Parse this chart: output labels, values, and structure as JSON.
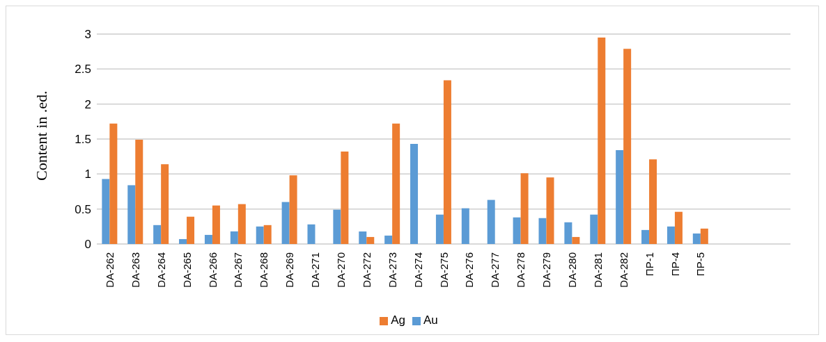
{
  "chart_data": {
    "type": "bar",
    "ylabel": "Content in .ed.",
    "categories": [
      "DA-262",
      "DA-263",
      "DA-264",
      "DA-265",
      "DA-266",
      "DA-267",
      "DA-268",
      "DA-269",
      "DA-271",
      "DA-270",
      "DA-272",
      "DA-273",
      "DA-274",
      "DA-275",
      "DA-276",
      "DA-277",
      "DA-278",
      "DA-279",
      "DA-280",
      "DA-281",
      "DA-282",
      "ПР-1",
      "ПР-4",
      "ПР-5",
      null,
      null,
      null
    ],
    "series": [
      {
        "name": "Au",
        "color": "#5b9bd5",
        "values": [
          0.93,
          0.84,
          0.27,
          0.07,
          0.13,
          0.18,
          0.25,
          0.6,
          0.28,
          0.49,
          0.18,
          0.12,
          1.43,
          0.42,
          0.51,
          0.63,
          0.38,
          0.37,
          0.31,
          0.42,
          1.34,
          0.2,
          0.25,
          0.15,
          null,
          null,
          null
        ]
      },
      {
        "name": "Ag",
        "color": "#ed7d31",
        "values": [
          1.72,
          1.49,
          1.14,
          0.39,
          0.55,
          0.57,
          0.27,
          0.98,
          0,
          1.32,
          0.1,
          1.72,
          0,
          2.34,
          0,
          0,
          1.01,
          0.95,
          0.1,
          2.95,
          2.79,
          1.21,
          0.46,
          0.22,
          null,
          null,
          null
        ]
      }
    ],
    "ylim": [
      0,
      3
    ],
    "yticks": [
      0,
      0.5,
      1,
      1.5,
      2,
      2.5,
      3
    ],
    "grid": "y",
    "legend": "bottom"
  }
}
